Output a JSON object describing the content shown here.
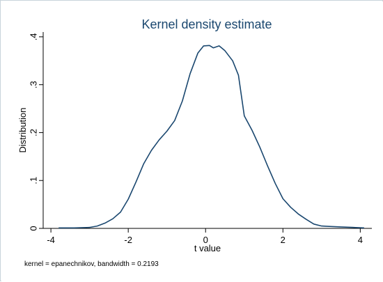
{
  "chart_data": {
    "type": "line",
    "title": "Kernel density estimate",
    "xlabel": "t value",
    "ylabel": "Distribution",
    "note": "kernel = epanechnikov, bandwidth = 0.2193",
    "xlim": [
      -4.2,
      4.3
    ],
    "ylim": [
      0,
      0.41
    ],
    "x_ticks": [
      -4,
      -2,
      0,
      2,
      4
    ],
    "x_tick_labels": [
      "-4",
      "-2",
      "0",
      "2",
      "4"
    ],
    "y_ticks": [
      0,
      0.1,
      0.2,
      0.3,
      0.4
    ],
    "y_tick_labels": [
      "0",
      ".1",
      ".2",
      ".3",
      ".4"
    ],
    "grid": false,
    "colors": {
      "line": "#1a476f",
      "title": "#1a476f",
      "background": "#ffffff"
    },
    "series": [
      {
        "x": [
          -3.8,
          -3.4,
          -3.0,
          -2.8,
          -2.6,
          -2.4,
          -2.2,
          -2.0,
          -1.8,
          -1.6,
          -1.4,
          -1.2,
          -1.0,
          -0.8,
          -0.6,
          -0.4,
          -0.2,
          -0.05,
          0.1,
          0.2,
          0.35,
          0.5,
          0.7,
          0.85,
          1.0,
          1.2,
          1.4,
          1.6,
          1.8,
          2.0,
          2.2,
          2.4,
          2.6,
          2.8,
          3.0,
          3.2,
          3.5,
          3.8,
          4.1
        ],
        "y": [
          0.001,
          0.001,
          0.002,
          0.005,
          0.011,
          0.02,
          0.034,
          0.061,
          0.097,
          0.135,
          0.163,
          0.185,
          0.203,
          0.225,
          0.266,
          0.323,
          0.366,
          0.381,
          0.382,
          0.377,
          0.381,
          0.371,
          0.35,
          0.32,
          0.235,
          0.205,
          0.17,
          0.131,
          0.094,
          0.062,
          0.044,
          0.03,
          0.019,
          0.009,
          0.005,
          0.004,
          0.003,
          0.002,
          0.001
        ]
      }
    ]
  }
}
